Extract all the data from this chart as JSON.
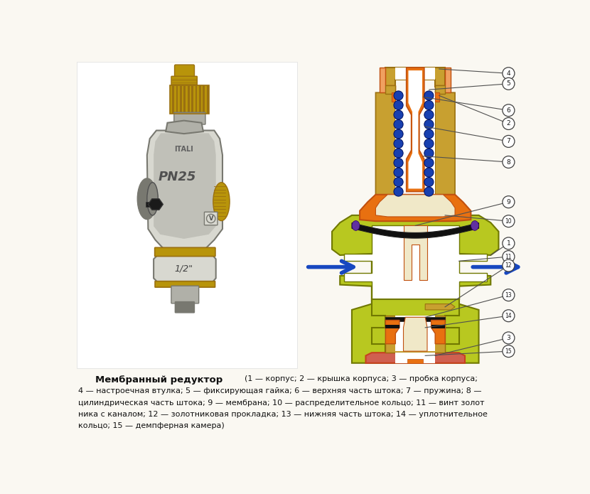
{
  "bg_color": "#faf8f2",
  "title_bold": "Мембранный редуктор",
  "legend_line1": "(1 — корпус; 2 — крышка корпуса; 3 — пробка корпуса;",
  "legend_line2": "4 — настроечная втулка; 5 — фиксирующая гайка; 6 — верхняя часть штока; 7 — пружина; 8 —",
  "legend_line3": "цилиндрическая часть штока; 9 — мембрана; 10 — распределительное кольцо; 11 — винт золот",
  "legend_line4": "ника с каналом; 12 — золотниковая прокладка; 13 — нижняя часть штока; 14 — уплотнительное",
  "legend_line5": "кольцо; 15 — демпферная камера)",
  "bold_items_line2": [
    "4",
    "5",
    "6",
    "7",
    "8"
  ],
  "bold_items_line3": [
    "9",
    "10",
    "11"
  ],
  "bold_items_line4": [
    "12",
    "13",
    "14"
  ],
  "bold_items_line5": [
    "15"
  ],
  "colors": {
    "gold": "#C8A030",
    "gold_dark": "#9A7010",
    "orange_bright": "#E87010",
    "orange_dark": "#C05010",
    "orange_light": "#F0A060",
    "salmon": "#E8A080",
    "yellow_green": "#B8C820",
    "yg_dark": "#707800",
    "white": "#FFFFFF",
    "cream": "#F0E8C8",
    "black": "#101010",
    "blue_spring": "#1840B0",
    "blue_arrow": "#1848C0",
    "red_orange": "#C84020",
    "red_salmon": "#D06050",
    "silver": "#B0B0A8",
    "silver_dark": "#787870",
    "silver_light": "#D8D8D0",
    "brass": "#B8940A",
    "purple": "#6030A0",
    "bg": "#faf8f2"
  }
}
